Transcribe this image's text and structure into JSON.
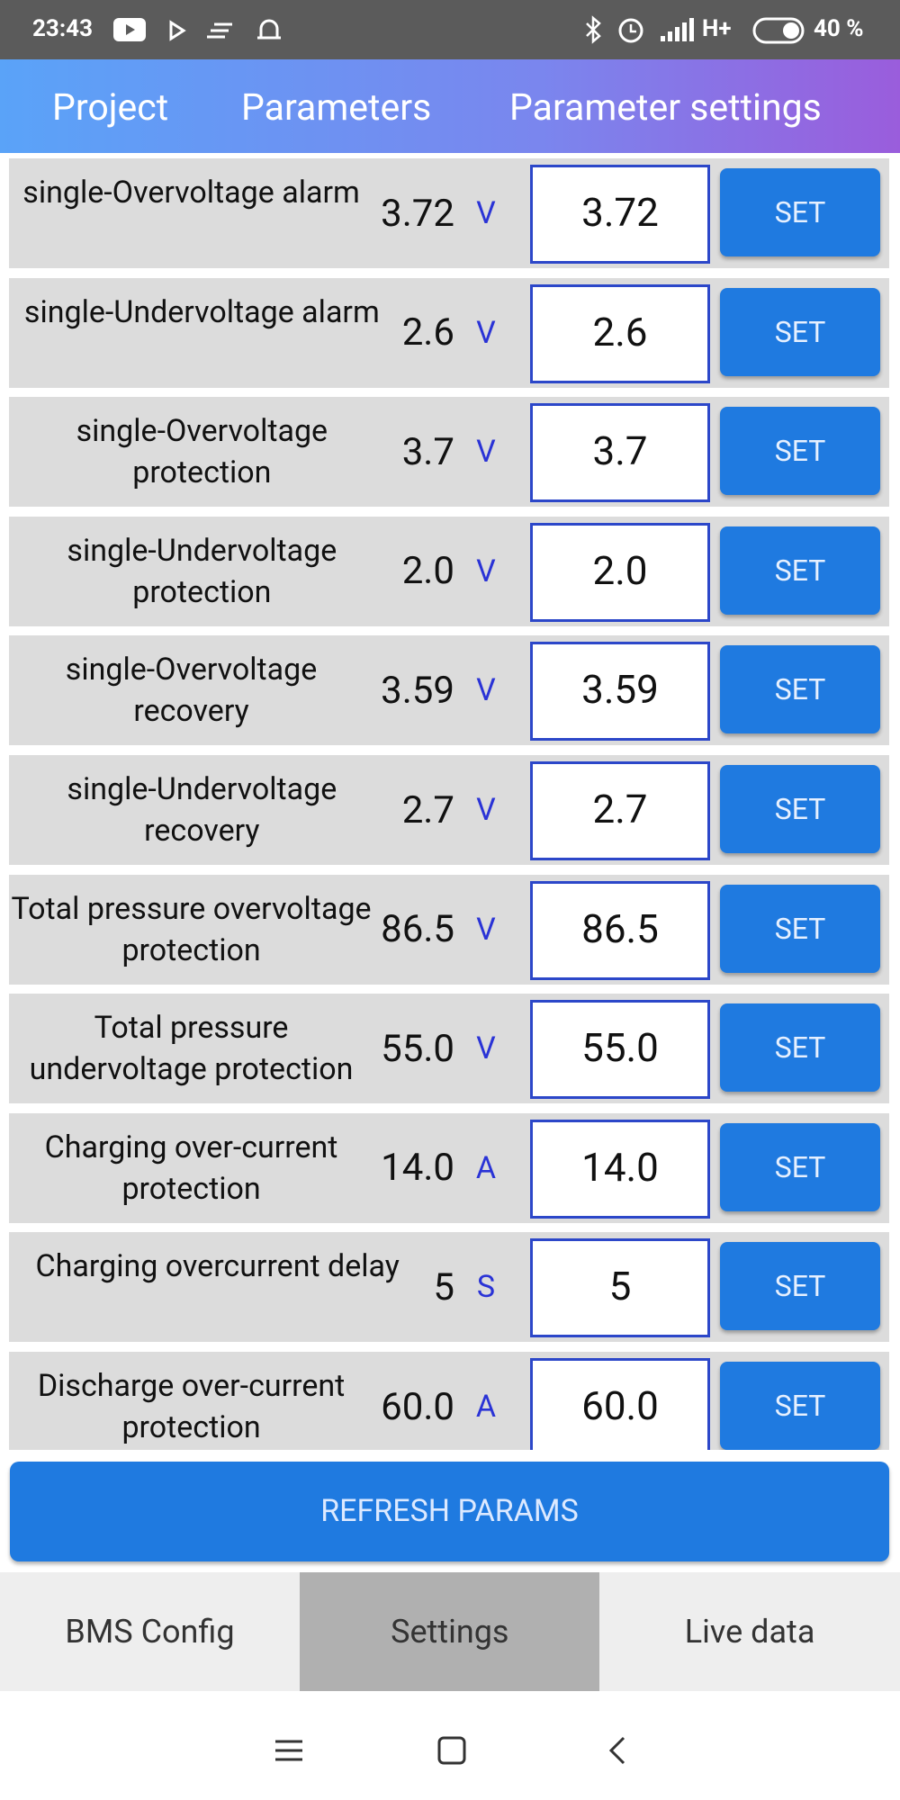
{
  "status": {
    "time": "23:43",
    "network": "H+",
    "battery": "40 %"
  },
  "tabs": [
    "Project",
    "Parameters",
    "Parameter settings"
  ],
  "rows": [
    {
      "label": "single-Overvoltage alarm",
      "value": "3.72",
      "unit": "V",
      "input": "3.72",
      "button": "SET"
    },
    {
      "label": "single-Undervoltage alarm",
      "value": "2.6",
      "unit": "V",
      "input": "2.6",
      "button": "SET"
    },
    {
      "label": "single-Overvoltage protection",
      "value": "3.7",
      "unit": "V",
      "input": "3.7",
      "button": "SET"
    },
    {
      "label": "single-Undervoltage protection",
      "value": "2.0",
      "unit": "V",
      "input": "2.0",
      "button": "SET"
    },
    {
      "label": "single-Overvoltage recovery",
      "value": "3.59",
      "unit": "V",
      "input": "3.59",
      "button": "SET"
    },
    {
      "label": "single-Undervoltage recovery",
      "value": "2.7",
      "unit": "V",
      "input": "2.7",
      "button": "SET"
    },
    {
      "label": "Total pressure overvoltage protection",
      "value": "86.5",
      "unit": "V",
      "input": "86.5",
      "button": "SET"
    },
    {
      "label": "Total pressure undervoltage protection",
      "value": "55.0",
      "unit": "V",
      "input": "55.0",
      "button": "SET"
    },
    {
      "label": "Charging over-current protection",
      "value": "14.0",
      "unit": "A",
      "input": "14.0",
      "button": "SET"
    },
    {
      "label": "Charging overcurrent delay",
      "value": "5",
      "unit": "S",
      "input": "5",
      "button": "SET"
    },
    {
      "label": "Discharge over-current protection",
      "value": "60.0",
      "unit": "A",
      "input": "60.0",
      "button": "SET"
    }
  ],
  "refresh_button": "REFRESH PARAMS",
  "bottom_tabs": [
    "BMS Config",
    "Settings",
    "Live data"
  ]
}
